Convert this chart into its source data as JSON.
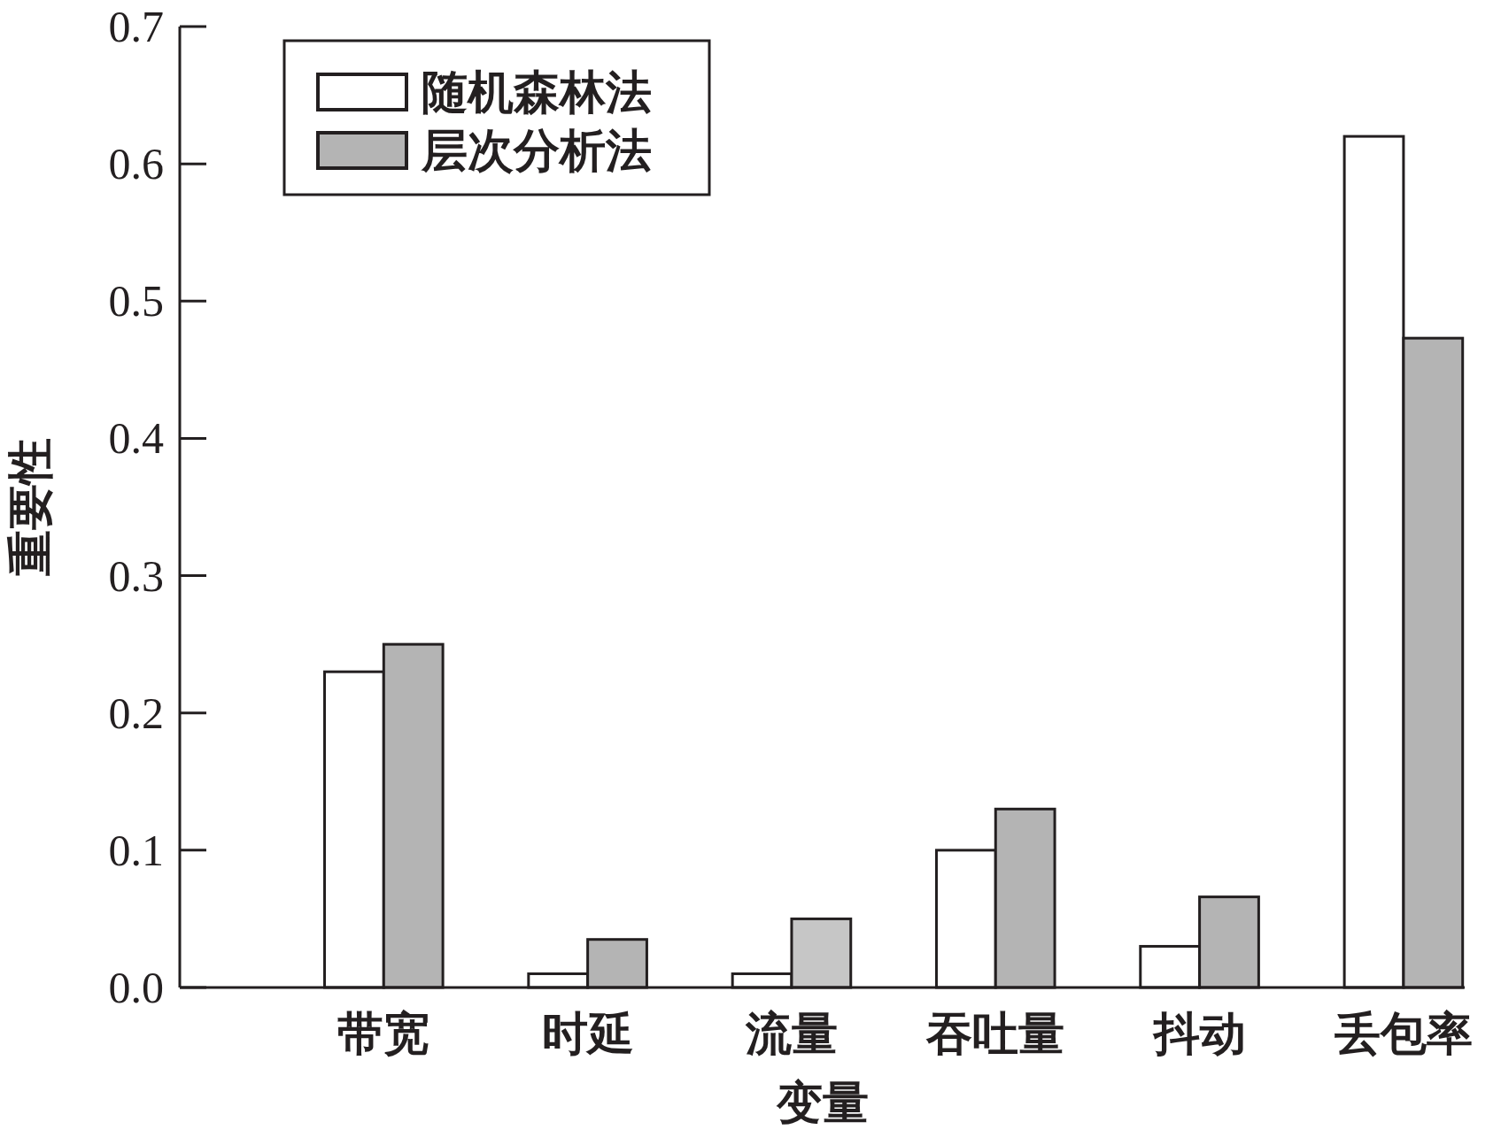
{
  "chart_data": {
    "type": "bar",
    "xlabel": "变量",
    "ylabel": "重要性",
    "categories": [
      "带宽",
      "时延",
      "流量",
      "吞吐量",
      "抖动",
      "丢包率"
    ],
    "ylim": [
      0,
      0.7
    ],
    "yticks": [
      {
        "value": 0,
        "label": "0.0"
      },
      0.1,
      0.2,
      0.3,
      0.4,
      0.5,
      0.6,
      0.7
    ],
    "legend": "top left",
    "grid": false,
    "series": [
      {
        "name": "随机森林法",
        "color": "#ffffff",
        "values": [
          0.23,
          0.01,
          0.01,
          0.1,
          0.03,
          0.62
        ]
      },
      {
        "name": "层次分析法",
        "color": "#b4b4b4",
        "colors": [
          "#b4b4b4",
          "#b4b4b4",
          "#c6c6c6",
          "#b4b4b4",
          "#b4b4b4",
          "#b4b4b4"
        ],
        "values": [
          0.25,
          0.035,
          0.05,
          0.13,
          0.066,
          0.473
        ]
      }
    ]
  }
}
